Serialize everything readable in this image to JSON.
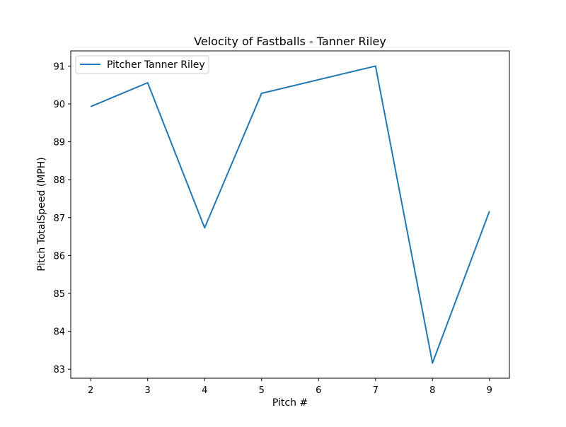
{
  "chart_data": {
    "type": "line",
    "title": "Velocity of Fastballs - Tanner Riley",
    "xlabel": "Pitch #",
    "ylabel": "Pitch TotalSpeed (MPH)",
    "xlim": [
      1.65,
      9.35
    ],
    "ylim": [
      82.76,
      91.4
    ],
    "xticks": [
      2,
      3,
      4,
      5,
      6,
      7,
      8,
      9
    ],
    "yticks": [
      83,
      84,
      85,
      86,
      87,
      88,
      89,
      90,
      91
    ],
    "grid": false,
    "legend_position": "upper-left",
    "series": [
      {
        "name": "Pitcher Tanner Riley",
        "color": "#1f77b4",
        "x": [
          2,
          3,
          4,
          5,
          7,
          8,
          9
        ],
        "y": [
          89.93,
          90.56,
          86.73,
          90.28,
          91.0,
          83.16,
          87.17
        ]
      }
    ]
  }
}
